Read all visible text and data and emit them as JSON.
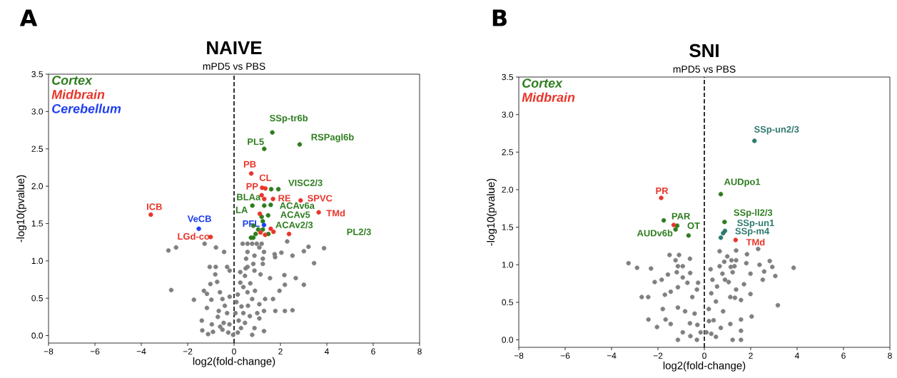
{
  "chart_data": [
    {
      "type": "scatter",
      "title": "NAIVE",
      "subtitle": "mPD5 vs PBS",
      "xlabel": "log2(fold-change)",
      "ylabel": "-log10(pvalue)",
      "marker": "circle",
      "legend": "top left",
      "xlim": [
        -8,
        8
      ],
      "ylim": [
        -0.1,
        3.5
      ],
      "xticks": [
        {
          "value": -8,
          "label": "−8"
        },
        {
          "value": -6,
          "label": "−6"
        },
        {
          "value": -4,
          "label": "−4"
        },
        {
          "value": -2,
          "label": "−2"
        },
        0,
        2,
        4,
        6,
        8
      ],
      "yticks": [
        {
          "value": 0,
          "label": "0.0"
        },
        {
          "value": 0.5,
          "label": "0.5"
        },
        {
          "value": 1,
          "label": "1.0"
        },
        {
          "value": 1.5,
          "label": "1.5"
        },
        {
          "value": 2,
          "label": "2.0"
        },
        {
          "value": 2.5,
          "label": "2.5"
        },
        {
          "value": 3,
          "label": "3.0"
        },
        {
          "value": 3.5,
          "label": "3.5"
        }
      ],
      "ref_lines": [
        {
          "axis": "x",
          "value": 0,
          "label": null,
          "color": "#000000",
          "line_style": "dashed"
        }
      ],
      "series": [
        {
          "color": "#808080",
          "x": [
            -2.83,
            -2.5,
            -1.27,
            -0.78,
            -0.43,
            -2.71,
            -1.73,
            -1.05,
            -0.79,
            -0.3,
            -0.19,
            -0.81,
            -0.73,
            -1.02,
            -1.3,
            -1.17,
            -0.98,
            -1.17,
            -1.39,
            -1.37,
            -1.12,
            -0.91,
            -0.96,
            -0.61,
            -0.5,
            -0.66,
            -0.45,
            -0.25,
            -0.19,
            -0.3,
            0.37,
            0.58,
            0.78,
            0.98,
            1.19,
            1.09,
            1.29,
            0.58,
            0.88,
            0.52,
            1.24,
            0.83,
            1.24,
            0.58,
            0.88,
            0.27,
            0.47,
            1.14,
            1.55,
            1.75,
            1.77,
            2.04,
            2.52,
            2.29,
            3.01,
            3.21,
            3.88,
            3.45,
            2.17,
            2.66,
            2.19,
            3.01,
            1.96,
            1.68,
            1.78,
            2.19,
            2.52,
            0.27,
            0.16,
            0.32,
            0.58,
            0.78,
            1.09,
            1.34,
            1.29,
            1.09,
            1.29,
            0.78,
            0.16,
            0.47,
            0.68,
            0.88,
            0.06,
            -0.04,
            0.2,
            0.4,
            0.6,
            0.3,
            -0.2,
            -0.5,
            -0.7,
            0.5,
            0.7,
            0.9,
            1.0,
            0.4,
            -0.4,
            -0.6,
            0.1
          ],
          "values": [
            1.14,
            1.18,
            1.23,
            1.18,
            1.12,
            0.61,
            0.48,
            0.92,
            0.92,
            0.92,
            0.87,
            0.82,
            0.72,
            0.69,
            0.6,
            0.56,
            0.48,
            0.37,
            0.2,
            0.07,
            0.02,
            0.05,
            0.15,
            0.58,
            0.49,
            0.33,
            0.17,
            0.04,
            0.52,
            0.3,
            1.23,
            1.23,
            1.23,
            1.23,
            1.23,
            1.18,
            1.12,
            1.12,
            1.07,
            1.03,
            1.03,
            0.96,
            0.96,
            0.92,
            0.87,
            0.85,
            0.8,
            0.82,
            0.77,
            1.09,
            1.05,
            1.11,
            1.07,
            1.26,
            1.13,
            1.19,
            1.17,
            0.97,
            0.81,
            0.77,
            0.68,
            0.68,
            0.6,
            0.49,
            0.33,
            0.33,
            0.34,
            0.71,
            0.55,
            0.39,
            0.58,
            0.49,
            0.42,
            0.49,
            0.33,
            0.23,
            0.06,
            0.01,
            0.04,
            0.17,
            0.26,
            0.1,
            0.3,
            0.01,
            0.2,
            0.3,
            0.4,
            0.1,
            0.15,
            0.08,
            0.25,
            0.9,
            0.7,
            0.6,
            0.3,
            0.65,
            0.4,
            0.12,
            0.45
          ]
        },
        {
          "name": "Cortex",
          "color": "#2e7d1f",
          "x": [
            1.65,
            1.3,
            2.83,
            1.6,
            1.91,
            1.3,
            1.58,
            0.79,
            1.47,
            1.19,
            1.24,
            0.83,
            1.04,
            1.24,
            0.93,
            0.73,
            0.83,
            1.48
          ],
          "values": [
            2.72,
            2.5,
            2.56,
            1.96,
            1.96,
            1.74,
            1.75,
            1.74,
            1.61,
            1.59,
            1.53,
            1.47,
            1.42,
            1.42,
            1.36,
            1.31,
            1.31,
            1.36
          ]
        },
        {
          "name": "Midbrain",
          "color": "#e8352a",
          "x": [
            -3.59,
            -1.01,
            0.74,
            1.21,
            1.35,
            1.19,
            1.3,
            1.68,
            2.87,
            3.65,
            1.11,
            1.58,
            1.7,
            1.34,
            1.14,
            2.37
          ],
          "values": [
            1.62,
            1.32,
            2.17,
            1.98,
            1.97,
            1.88,
            1.83,
            1.83,
            1.81,
            1.65,
            1.63,
            1.43,
            1.39,
            1.35,
            1.38,
            1.36
          ]
        },
        {
          "name": "Cerebellum",
          "color": "#1f3ff0",
          "x": [
            -1.52,
            1.29
          ],
          "values": [
            1.43,
            1.48
          ]
        }
      ],
      "annotations": [
        "A",
        {
          "text": "SSp-tr6b",
          "x": 1.65,
          "y": 2.72
        },
        {
          "text": "PL5",
          "x": 1.3,
          "y": 2.5
        },
        {
          "text": "RSPagl6b",
          "x": 2.83,
          "y": 2.56
        },
        {
          "text": "PB",
          "x": 0.74,
          "y": 2.17
        },
        {
          "text": "CL",
          "x": 1.35,
          "y": 1.97
        },
        {
          "text": "PP",
          "x": 1.21,
          "y": 1.98
        },
        {
          "text": "VISC2/3",
          "x": 1.91,
          "y": 1.96
        },
        {
          "text": "BLAa",
          "x": 1.3,
          "y": 1.74
        },
        {
          "text": "RE",
          "x": 1.68,
          "y": 1.83
        },
        {
          "text": "SPVC",
          "x": 2.87,
          "y": 1.81
        },
        {
          "text": "LA",
          "x": 0.79,
          "y": 1.74
        },
        {
          "text": "ACAv6a",
          "x": 1.58,
          "y": 1.75
        },
        {
          "text": "ACAv5",
          "x": 1.47,
          "y": 1.61
        },
        {
          "text": "TMd",
          "x": 3.65,
          "y": 1.65
        },
        {
          "text": "PFL",
          "x": 1.29,
          "y": 1.48
        },
        {
          "text": "ACAv2/3",
          "x": 1.24,
          "y": 1.53
        },
        "PL2/3",
        {
          "text": "ICB",
          "x": -3.59,
          "y": 1.62
        },
        {
          "text": "VeCB",
          "x": -1.52,
          "y": 1.43
        },
        {
          "text": "LGd-co",
          "x": -1.01,
          "y": 1.32
        }
      ]
    },
    {
      "type": "scatter",
      "title": "SNI",
      "subtitle": "mPD5 vs PBS",
      "xlabel": "log2(fold-change)",
      "ylabel": "-log10(pvalue)",
      "marker": "circle",
      "legend": "top left",
      "xlim": [
        -8,
        8
      ],
      "ylim": [
        -0.1,
        3.5
      ],
      "xticks": [
        {
          "value": -8,
          "label": "−8"
        },
        {
          "value": -6,
          "label": "−6"
        },
        {
          "value": -4,
          "label": "−4"
        },
        {
          "value": -2,
          "label": "−2"
        },
        0,
        2,
        4,
        6,
        8
      ],
      "yticks": [
        {
          "value": 0,
          "label": "0.0"
        },
        {
          "value": 0.5,
          "label": "0.5"
        },
        {
          "value": 1,
          "label": "1.0"
        },
        {
          "value": 1.5,
          "label": "1.5"
        },
        {
          "value": 2,
          "label": "2.0"
        },
        {
          "value": 2.5,
          "label": "2.5"
        },
        {
          "value": 3,
          "label": "3.0"
        },
        {
          "value": 3.5,
          "label": "3.5"
        }
      ],
      "ref_lines": [
        {
          "axis": "x",
          "value": 0,
          "label": null,
          "color": "#000000",
          "line_style": "dashed"
        }
      ],
      "series": [
        {
          "color": "#808080",
          "x": [
            -3.27,
            -2.9,
            -2.3,
            -1.5,
            -1.09,
            -1.24,
            -0.62,
            -1.14,
            -0.93,
            -1.19,
            -0.61,
            -1.57,
            -1.84,
            -2.14,
            -2.7,
            -2.42,
            -1.79,
            -2.41,
            -2.04,
            -1.67,
            -1.45,
            -1.7,
            -1.14,
            -0.93,
            -0.73,
            -0.27,
            -0.52,
            -0.32,
            -1.14,
            -0.83,
            -1.45,
            -1.14,
            -0.93,
            -0.62,
            -0.32,
            -0.42,
            -0.16,
            0.66,
            1.37,
            1.84,
            2.32,
            0.99,
            1.17,
            1.37,
            0.86,
            0.66,
            1.14,
            1.3,
            1.81,
            2.38,
            2.82,
            2.93,
            3.85,
            0.27,
            1.22,
            0.78,
            1.99,
            2.58,
            3.06,
            2.52,
            0.89,
            1.05,
            0.35,
            1.71,
            1.37,
            0.55,
            1.99,
            3.17,
            1.58,
            1.12,
            0.3,
            0.5,
            0.81,
            1.32,
            2.04,
            1.58,
            1.58,
            1.58,
            1.22,
            1.12,
            0.71,
            0.4,
            0.19,
            0.09,
            0.5,
            -0.3,
            0.2,
            -0.6,
            0.3
          ],
          "values": [
            1.02,
            0.96,
            0.95,
            1.13,
            1.13,
            1.06,
            1.08,
            0.98,
            0.98,
            0.9,
            0.89,
            0.87,
            0.8,
            0.77,
            0.57,
            0.57,
            0.41,
            0.27,
            0.17,
            0.27,
            0.64,
            0.6,
            0.7,
            0.83,
            0.76,
            0.76,
            0.57,
            0.67,
            0.43,
            0.38,
            0.21,
            0.0,
            0.1,
            0.22,
            0.0,
            0.35,
            0.1,
            1.18,
            1.19,
            1.14,
            1.21,
            1.11,
            1.06,
            1.06,
            1.04,
            0.98,
            0.97,
            0.98,
            1.02,
            1.0,
            1.05,
            0.97,
            0.96,
            0.94,
            0.9,
            0.88,
            0.88,
            0.91,
            0.85,
            0.8,
            0.8,
            0.77,
            0.8,
            0.74,
            0.67,
            0.71,
            0.61,
            0.46,
            0.53,
            0.57,
            0.62,
            0.51,
            0.38,
            0.56,
            0.31,
            0.27,
            0.12,
            0.0,
            0.0,
            0.21,
            0.16,
            0.26,
            0.41,
            0.1,
            0.04,
            0.2,
            0.25,
            0.05,
            0.08
          ]
        },
        {
          "name": "Cortex",
          "color": "#2e7d1f",
          "x": [
            2.16,
            0.71,
            0.87,
            0.89,
            0.81,
            0.71,
            -1.75,
            -1.17,
            -1.24,
            -0.68
          ],
          "values": [
            2.65,
            1.94,
            1.57,
            1.45,
            1.42,
            1.36,
            1.59,
            1.52,
            1.47,
            1.39
          ],
          "colors": [
            "#2e7a6e",
            "#2e7d1f",
            "#2e7d1f",
            "#2e7a6e",
            "#2e7a6e",
            "#2e7a6e",
            "#2e7d1f",
            "#2e7d1f",
            "#2e7d1f",
            "#2e7d1f"
          ]
        },
        {
          "name": "Midbrain",
          "color": "#e8352a",
          "x": [
            -1.86,
            -1.32,
            1.35
          ],
          "values": [
            1.89,
            1.53,
            1.33
          ]
        }
      ],
      "annotations": [
        "B",
        {
          "text": "SSp-un2/3",
          "x": 2.16,
          "y": 2.65
        },
        {
          "text": "AUDpo1",
          "x": 0.71,
          "y": 1.94
        },
        {
          "text": "PR",
          "x": -1.86,
          "y": 1.89
        },
        {
          "text": "PAR",
          "x": -1.75,
          "y": 1.59
        },
        {
          "text": "OT",
          "x": -1.17,
          "y": 1.52
        },
        {
          "text": "AUDv6b",
          "x": -1.24,
          "y": 1.47
        },
        {
          "text": "SSp-ll2/3",
          "x": 0.87,
          "y": 1.57
        },
        {
          "text": "SSp-un1",
          "x": 0.89,
          "y": 1.45
        },
        {
          "text": "SSp-m4",
          "x": 0.71,
          "y": 1.36
        },
        {
          "text": "TMd",
          "x": 1.35,
          "y": 1.33
        }
      ]
    }
  ]
}
